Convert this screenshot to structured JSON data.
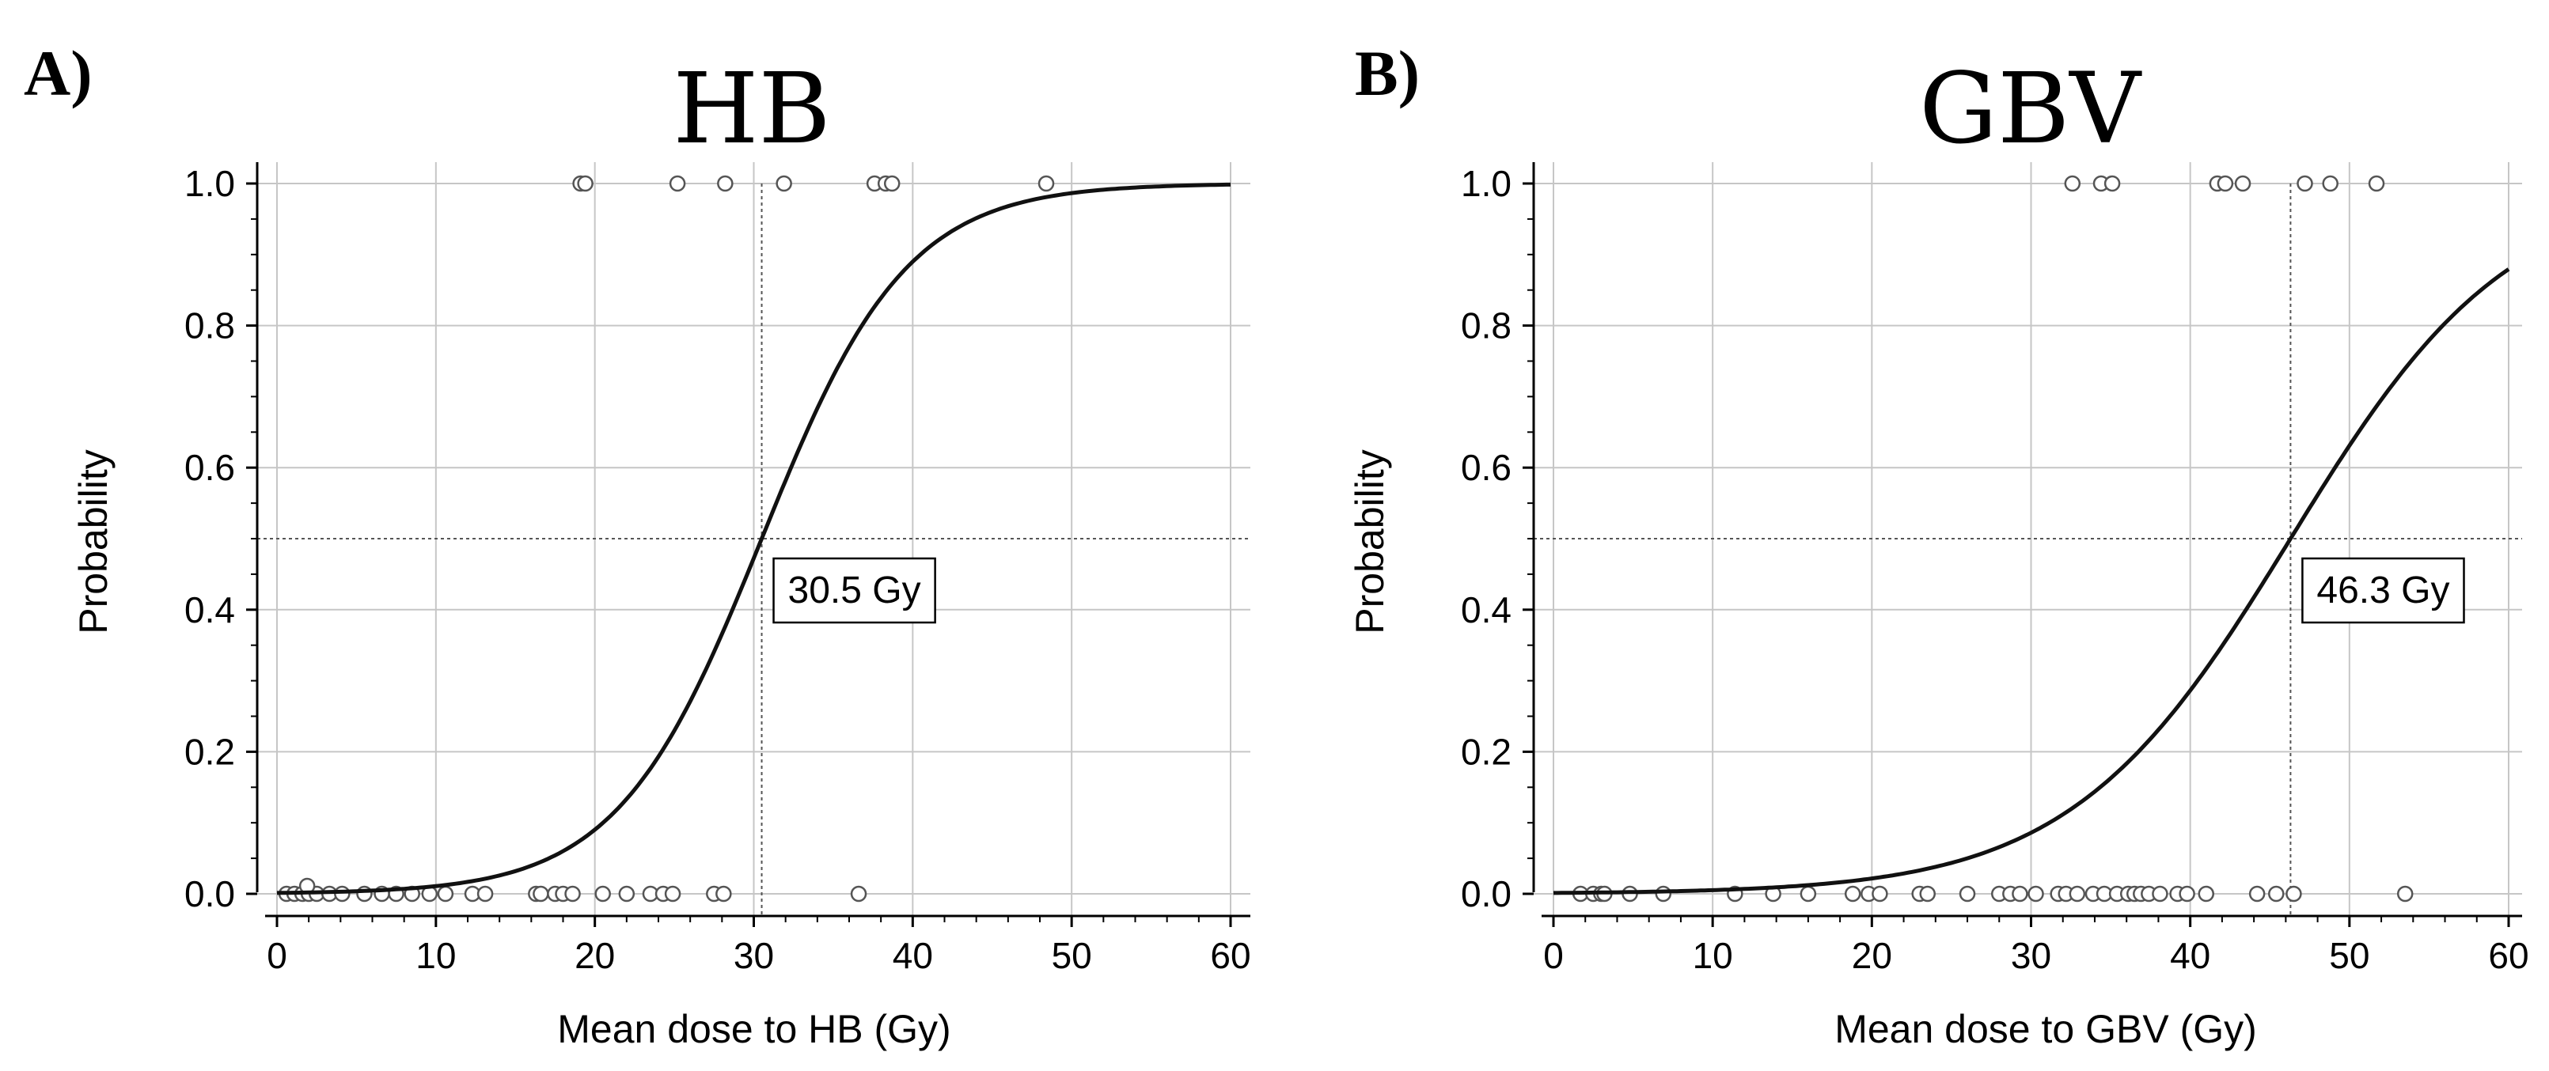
{
  "chart_data": [
    {
      "type": "scatter",
      "panel_label": "A)",
      "title": "HB",
      "xlabel": "Mean dose to HB (Gy)",
      "ylabel": "Probability",
      "xlim": [
        0,
        60
      ],
      "ylim": [
        0,
        1
      ],
      "xticks": [
        "0",
        "10",
        "20",
        "30",
        "40",
        "50",
        "60"
      ],
      "yticks": [
        "0.0",
        "0.2",
        "0.4",
        "0.6",
        "0.8",
        "1.0"
      ],
      "grid": true,
      "logistic_curve": {
        "midpoint": 30.5,
        "slope": 0.22,
        "x_range": [
          0,
          60
        ]
      },
      "annotation": "30.5 Gy",
      "threshold": {
        "x": 30.5,
        "y": 0.5
      },
      "events": [
        19.1,
        19.4,
        25.2,
        28.2,
        31.9,
        37.6,
        38.3,
        38.7,
        48.4
      ],
      "non_events": [
        0.6,
        1.1,
        1.6,
        2.0,
        2.5,
        3.3,
        4.1,
        5.5,
        6.6,
        7.5,
        8.5,
        9.6,
        10.6,
        12.3,
        13.1,
        16.3,
        16.6,
        17.5,
        18.0,
        18.6,
        20.5,
        22.0,
        23.5,
        24.3,
        24.9,
        27.5,
        28.1,
        36.6
      ],
      "non_event_extra": [
        1.9
      ]
    },
    {
      "type": "scatter",
      "panel_label": "B)",
      "title": "GBV",
      "xlabel": "Mean dose to GBV (Gy)",
      "ylabel": "Probability",
      "xlim": [
        0,
        60
      ],
      "ylim": [
        0,
        1
      ],
      "xticks": [
        "0",
        "10",
        "20",
        "30",
        "40",
        "50",
        "60"
      ],
      "yticks": [
        "0.0",
        "0.2",
        "0.4",
        "0.6",
        "0.8",
        "1.0"
      ],
      "grid": true,
      "logistic_curve": {
        "midpoint": 46.3,
        "slope": 0.145,
        "x_range": [
          0,
          60
        ]
      },
      "annotation": "46.3 Gy",
      "threshold": {
        "x": 46.3,
        "y": 0.5
      },
      "events": [
        32.6,
        34.4,
        35.1,
        41.7,
        42.2,
        43.3,
        47.2,
        48.8,
        51.7
      ],
      "non_events": [
        1.7,
        2.5,
        3.0,
        3.2,
        4.8,
        6.9,
        11.4,
        13.8,
        16.0,
        18.8,
        19.8,
        20.5,
        23.0,
        23.5,
        26.0,
        28.0,
        28.7,
        29.3,
        30.3,
        31.7,
        32.2,
        32.9,
        33.9,
        34.6,
        35.4,
        36.1,
        36.5,
        36.9,
        37.4,
        38.1,
        39.2,
        39.8,
        41.0,
        44.2,
        45.4,
        46.5,
        53.5
      ],
      "non_event_extra": []
    }
  ]
}
